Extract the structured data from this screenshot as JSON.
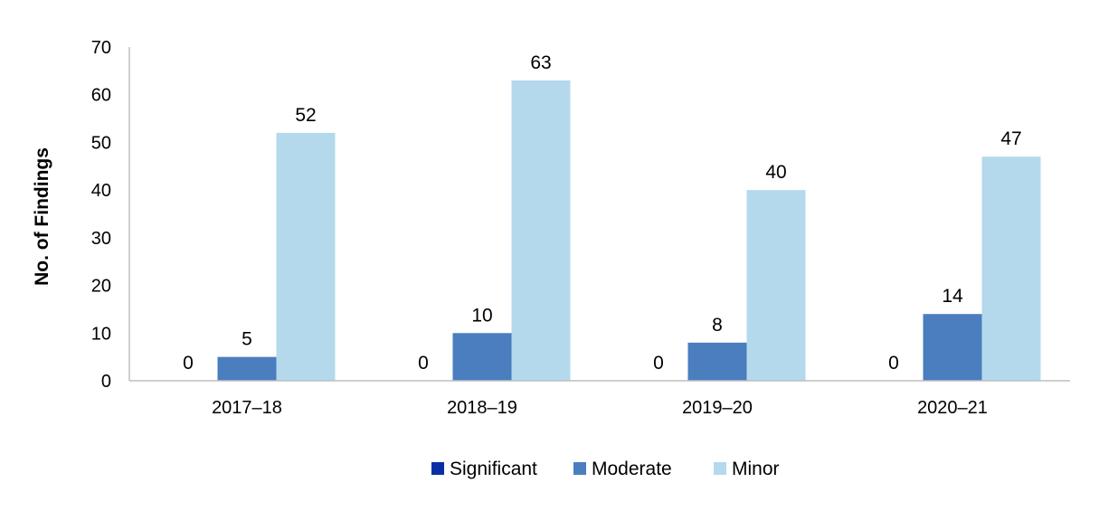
{
  "chart_data": {
    "type": "bar",
    "title": "",
    "xlabel": "",
    "ylabel": "No. of Findings",
    "ylim": [
      0,
      70
    ],
    "yticks": [
      0,
      10,
      20,
      30,
      40,
      50,
      60,
      70
    ],
    "grid": false,
    "legend_position": "bottom",
    "categories": [
      "2017–18",
      "2018–19",
      "2019–20",
      "2020–21"
    ],
    "series": [
      {
        "name": "Significant",
        "color": "#0A2FA5",
        "values": [
          0,
          0,
          0,
          0
        ]
      },
      {
        "name": "Moderate",
        "color": "#4A7EBF",
        "values": [
          5,
          10,
          8,
          14
        ]
      },
      {
        "name": "Minor",
        "color": "#B4D9EC",
        "values": [
          52,
          63,
          40,
          47
        ]
      }
    ],
    "axis_color": "#BFBFBF"
  }
}
